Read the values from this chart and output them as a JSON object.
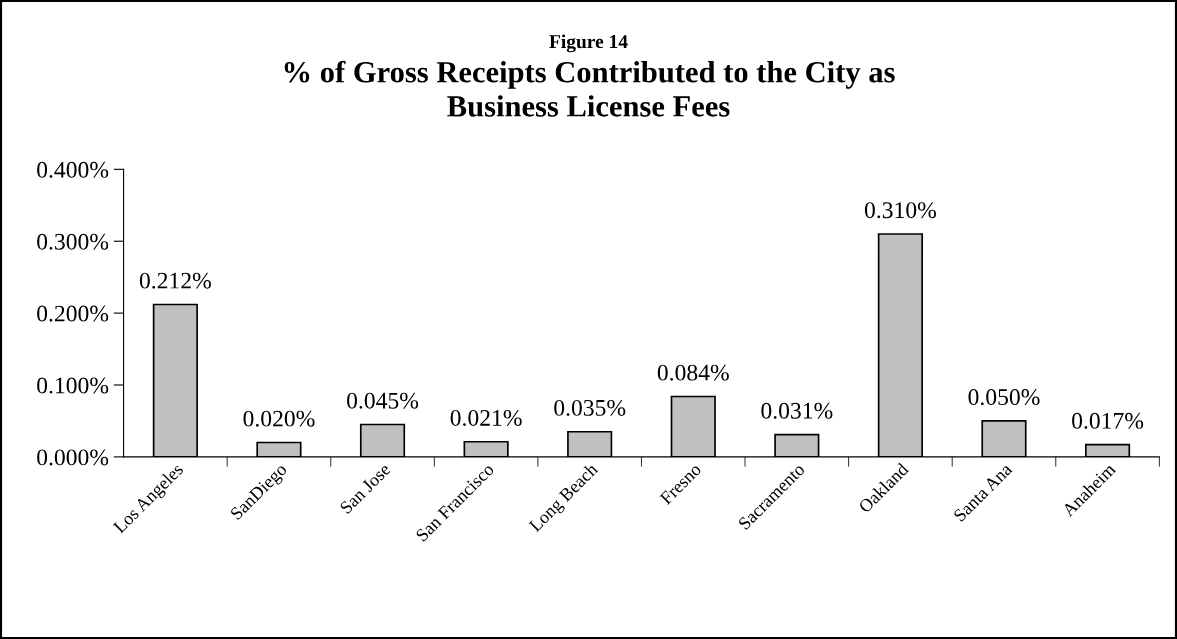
{
  "chart_data": {
    "type": "bar",
    "title": "Figure 14",
    "subtitle": "% of Gross Receipts Contributed to the City as\nBusiness License Fees",
    "categories": [
      "Los Angeles",
      "SanDiego",
      "San Jose",
      "San Francisco",
      "Long Beach",
      "Fresno",
      "Sacramento",
      "Oakland",
      "Santa Ana",
      "Anaheim"
    ],
    "values": [
      0.212,
      0.02,
      0.045,
      0.021,
      0.035,
      0.084,
      0.031,
      0.31,
      0.05,
      0.017
    ],
    "value_labels": [
      "0.212%",
      "0.020%",
      "0.045%",
      "0.021%",
      "0.035%",
      "0.084%",
      "0.031%",
      "0.310%",
      "0.050%",
      "0.017%"
    ],
    "color": "#c0c0c0",
    "ylim": [
      0,
      0.4
    ],
    "yticks": [
      {
        "value": 0,
        "label": "0.000%"
      },
      {
        "value": 0.1,
        "label": "0.100%"
      },
      {
        "value": 0.2,
        "label": "0.200%"
      },
      {
        "value": 0.3,
        "label": "0.300%"
      },
      {
        "value": 0.4,
        "label": "0.400%"
      }
    ],
    "grid": false,
    "legend": false
  }
}
